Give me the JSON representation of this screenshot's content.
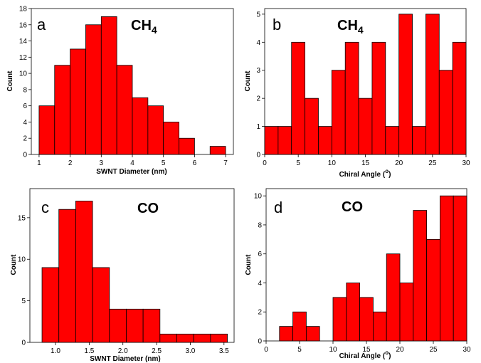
{
  "chart_data": [
    {
      "type": "bar",
      "panel_label": "a",
      "title": "CH",
      "title_sub": "4",
      "xlabel": "SWNT Diameter (nm)",
      "ylabel": "Count",
      "xlim": [
        0.75,
        7.25
      ],
      "ylim": [
        0,
        18
      ],
      "xticks": [
        "1",
        "2",
        "3",
        "4",
        "5",
        "6",
        "7"
      ],
      "xtick_values": [
        1,
        2,
        3,
        4,
        5,
        6,
        7
      ],
      "yticks": [
        "0",
        "2",
        "4",
        "6",
        "8",
        "10",
        "12",
        "14",
        "16",
        "18"
      ],
      "ytick_values": [
        0,
        2,
        4,
        6,
        8,
        10,
        12,
        14,
        16,
        18
      ],
      "bar_width": 0.5,
      "x": [
        1.25,
        1.75,
        2.25,
        2.75,
        3.25,
        3.75,
        4.25,
        4.75,
        5.25,
        5.75,
        6.25,
        6.75
      ],
      "values": [
        6,
        11,
        13,
        16,
        17,
        11,
        7,
        6,
        4,
        2,
        0,
        1
      ],
      "color": "#ff0000"
    },
    {
      "type": "bar",
      "panel_label": "b",
      "title": "CH",
      "title_sub": "4",
      "xlabel": "Chiral Angle (",
      "xlabel_sup": "o",
      "xlabel_end": ")",
      "ylabel": "Count",
      "xlim": [
        0,
        30
      ],
      "ylim": [
        0,
        5.2
      ],
      "xticks": [
        "0",
        "5",
        "10",
        "15",
        "20",
        "25",
        "30"
      ],
      "xtick_values": [
        0,
        5,
        10,
        15,
        20,
        25,
        30
      ],
      "yticks": [
        "0",
        "1",
        "2",
        "3",
        "4",
        "5"
      ],
      "ytick_values": [
        0,
        1,
        2,
        3,
        4,
        5
      ],
      "bar_width": 2,
      "x": [
        1,
        3,
        5,
        7,
        9,
        11,
        13,
        15,
        17,
        19,
        21,
        23,
        25,
        27,
        29
      ],
      "values": [
        1,
        1,
        4,
        2,
        1,
        3,
        4,
        2,
        4,
        1,
        5,
        1,
        5,
        3,
        4
      ],
      "color": "#ff0000"
    },
    {
      "type": "bar",
      "panel_label": "c",
      "title": "CO",
      "title_sub": "",
      "xlabel": "SWNT Diameter (nm)",
      "ylabel": "Count",
      "xlim": [
        0.62,
        3.65
      ],
      "ylim": [
        0,
        18.5
      ],
      "xticks": [
        "1.0",
        "1.5",
        "2.0",
        "2.5",
        "3.0",
        "3.5"
      ],
      "xtick_values": [
        1.0,
        1.5,
        2.0,
        2.5,
        3.0,
        3.5
      ],
      "yticks": [
        "0",
        "5",
        "10",
        "15"
      ],
      "ytick_values": [
        0,
        5,
        10,
        15
      ],
      "bar_width": 0.25,
      "x": [
        0.925,
        1.175,
        1.425,
        1.675,
        1.925,
        2.175,
        2.425,
        2.675,
        2.925,
        3.175,
        3.425
      ],
      "values": [
        9,
        16,
        17,
        9,
        4,
        4,
        4,
        1,
        1,
        1,
        1
      ],
      "color": "#ff0000"
    },
    {
      "type": "bar",
      "panel_label": "d",
      "title": "CO",
      "title_sub": "",
      "xlabel": "Chiral Angle (",
      "xlabel_sup": "o",
      "xlabel_end": ")",
      "ylabel": "Count",
      "xlim": [
        0,
        30
      ],
      "ylim": [
        0,
        10.5
      ],
      "xticks": [
        "0",
        "5",
        "10",
        "15",
        "20",
        "25",
        "30"
      ],
      "xtick_values": [
        0,
        5,
        10,
        15,
        20,
        25,
        30
      ],
      "yticks": [
        "0",
        "2",
        "4",
        "6",
        "8",
        "10"
      ],
      "ytick_values": [
        0,
        2,
        4,
        6,
        8,
        10
      ],
      "bar_width": 2,
      "x": [
        3,
        5,
        7,
        9,
        11,
        13,
        15,
        17,
        19,
        21,
        23,
        25,
        27,
        29
      ],
      "values": [
        1,
        2,
        1,
        0,
        3,
        4,
        3,
        2,
        6,
        4,
        9,
        7,
        10,
        10
      ],
      "color": "#ff0000"
    }
  ]
}
